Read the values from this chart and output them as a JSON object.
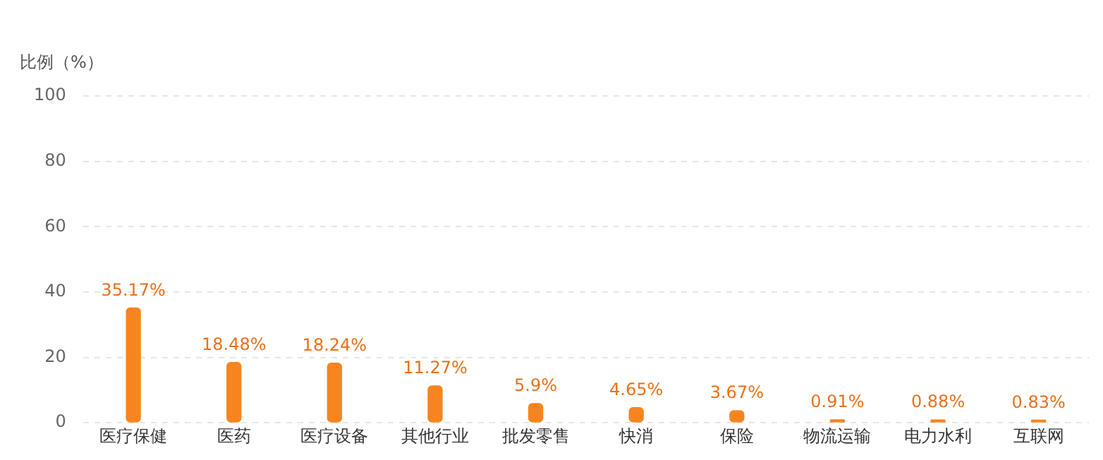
{
  "chart_data": {
    "type": "bar",
    "ylabel": "比例（%）",
    "categories": [
      "医疗保健",
      "医药",
      "医疗设备",
      "其他行业",
      "批发零售",
      "快消",
      "保险",
      "物流运输",
      "电力水利",
      "互联网"
    ],
    "values": [
      35.17,
      18.48,
      18.24,
      11.27,
      5.9,
      4.65,
      3.67,
      0.91,
      0.88,
      0.83
    ],
    "value_labels": [
      "35.17%",
      "18.48%",
      "18.24%",
      "11.27%",
      "5.9%",
      "4.65%",
      "3.67%",
      "0.91%",
      "0.88%",
      "0.83%"
    ],
    "color": "#f7841f",
    "ylim": [
      0,
      100
    ],
    "yticks": [
      0,
      20,
      40,
      60,
      80,
      100
    ],
    "grid": "y"
  }
}
